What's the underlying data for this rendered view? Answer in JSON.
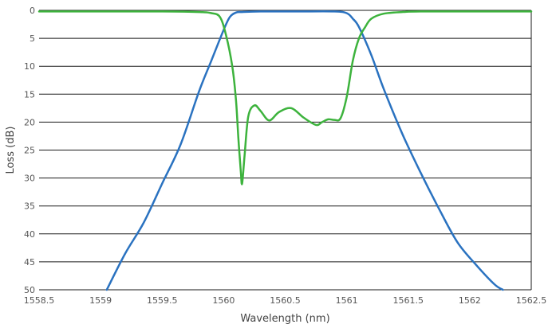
{
  "chart_data": {
    "type": "line",
    "title": "",
    "xlabel": "Wavelength (nm)",
    "ylabel": "Loss (dB)",
    "xlim": [
      1558.5,
      1562.5
    ],
    "ylim": [
      0,
      50
    ],
    "y_inverted": true,
    "grid": "horizontal",
    "legend": "none",
    "x_ticks": [
      "1558.5",
      "1559",
      "1559.5",
      "1560",
      "1560.5",
      "1561",
      "1561.5",
      "1562",
      "1562.5"
    ],
    "y_ticks": [
      "0",
      "5",
      "10",
      "15",
      "20",
      "25",
      "30",
      "35",
      "40",
      "45",
      "50"
    ],
    "series": [
      {
        "color": "#2a72c0",
        "x": [
          1559.05,
          1559.2,
          1559.35,
          1559.5,
          1559.65,
          1559.8,
          1559.9,
          1560.0,
          1560.05,
          1560.1,
          1560.15,
          1560.3,
          1560.6,
          1560.9,
          1561.0,
          1561.05,
          1561.1,
          1561.2,
          1561.3,
          1561.45,
          1561.6,
          1561.75,
          1561.9,
          1562.05,
          1562.2,
          1562.27
        ],
        "y": [
          50,
          43.5,
          38,
          31,
          24,
          14.5,
          9,
          3.5,
          1.2,
          0.4,
          0.3,
          0.2,
          0.2,
          0.2,
          0.5,
          1.5,
          3,
          8,
          14,
          22,
          29,
          35.5,
          41.5,
          45.5,
          49,
          50
        ]
      },
      {
        "color": "#3db33d",
        "x": [
          1558.5,
          1559.0,
          1559.5,
          1559.8,
          1559.9,
          1559.97,
          1560.02,
          1560.07,
          1560.1,
          1560.12,
          1560.14,
          1560.15,
          1560.17,
          1560.2,
          1560.25,
          1560.3,
          1560.37,
          1560.45,
          1560.55,
          1560.65,
          1560.75,
          1560.8,
          1560.85,
          1560.9,
          1560.95,
          1561.0,
          1561.05,
          1561.1,
          1561.15,
          1561.2,
          1561.3,
          1561.45,
          1561.6,
          1562.0,
          1562.5
        ],
        "y": [
          0.2,
          0.2,
          0.2,
          0.3,
          0.5,
          1.2,
          4.5,
          10,
          16,
          23,
          29,
          31,
          26,
          19,
          17,
          18,
          19.7,
          18.2,
          17.5,
          19.2,
          20.5,
          20,
          19.5,
          19.6,
          19.3,
          15.5,
          9,
          5,
          3,
          1.5,
          0.6,
          0.3,
          0.2,
          0.2,
          0.2
        ]
      }
    ]
  }
}
